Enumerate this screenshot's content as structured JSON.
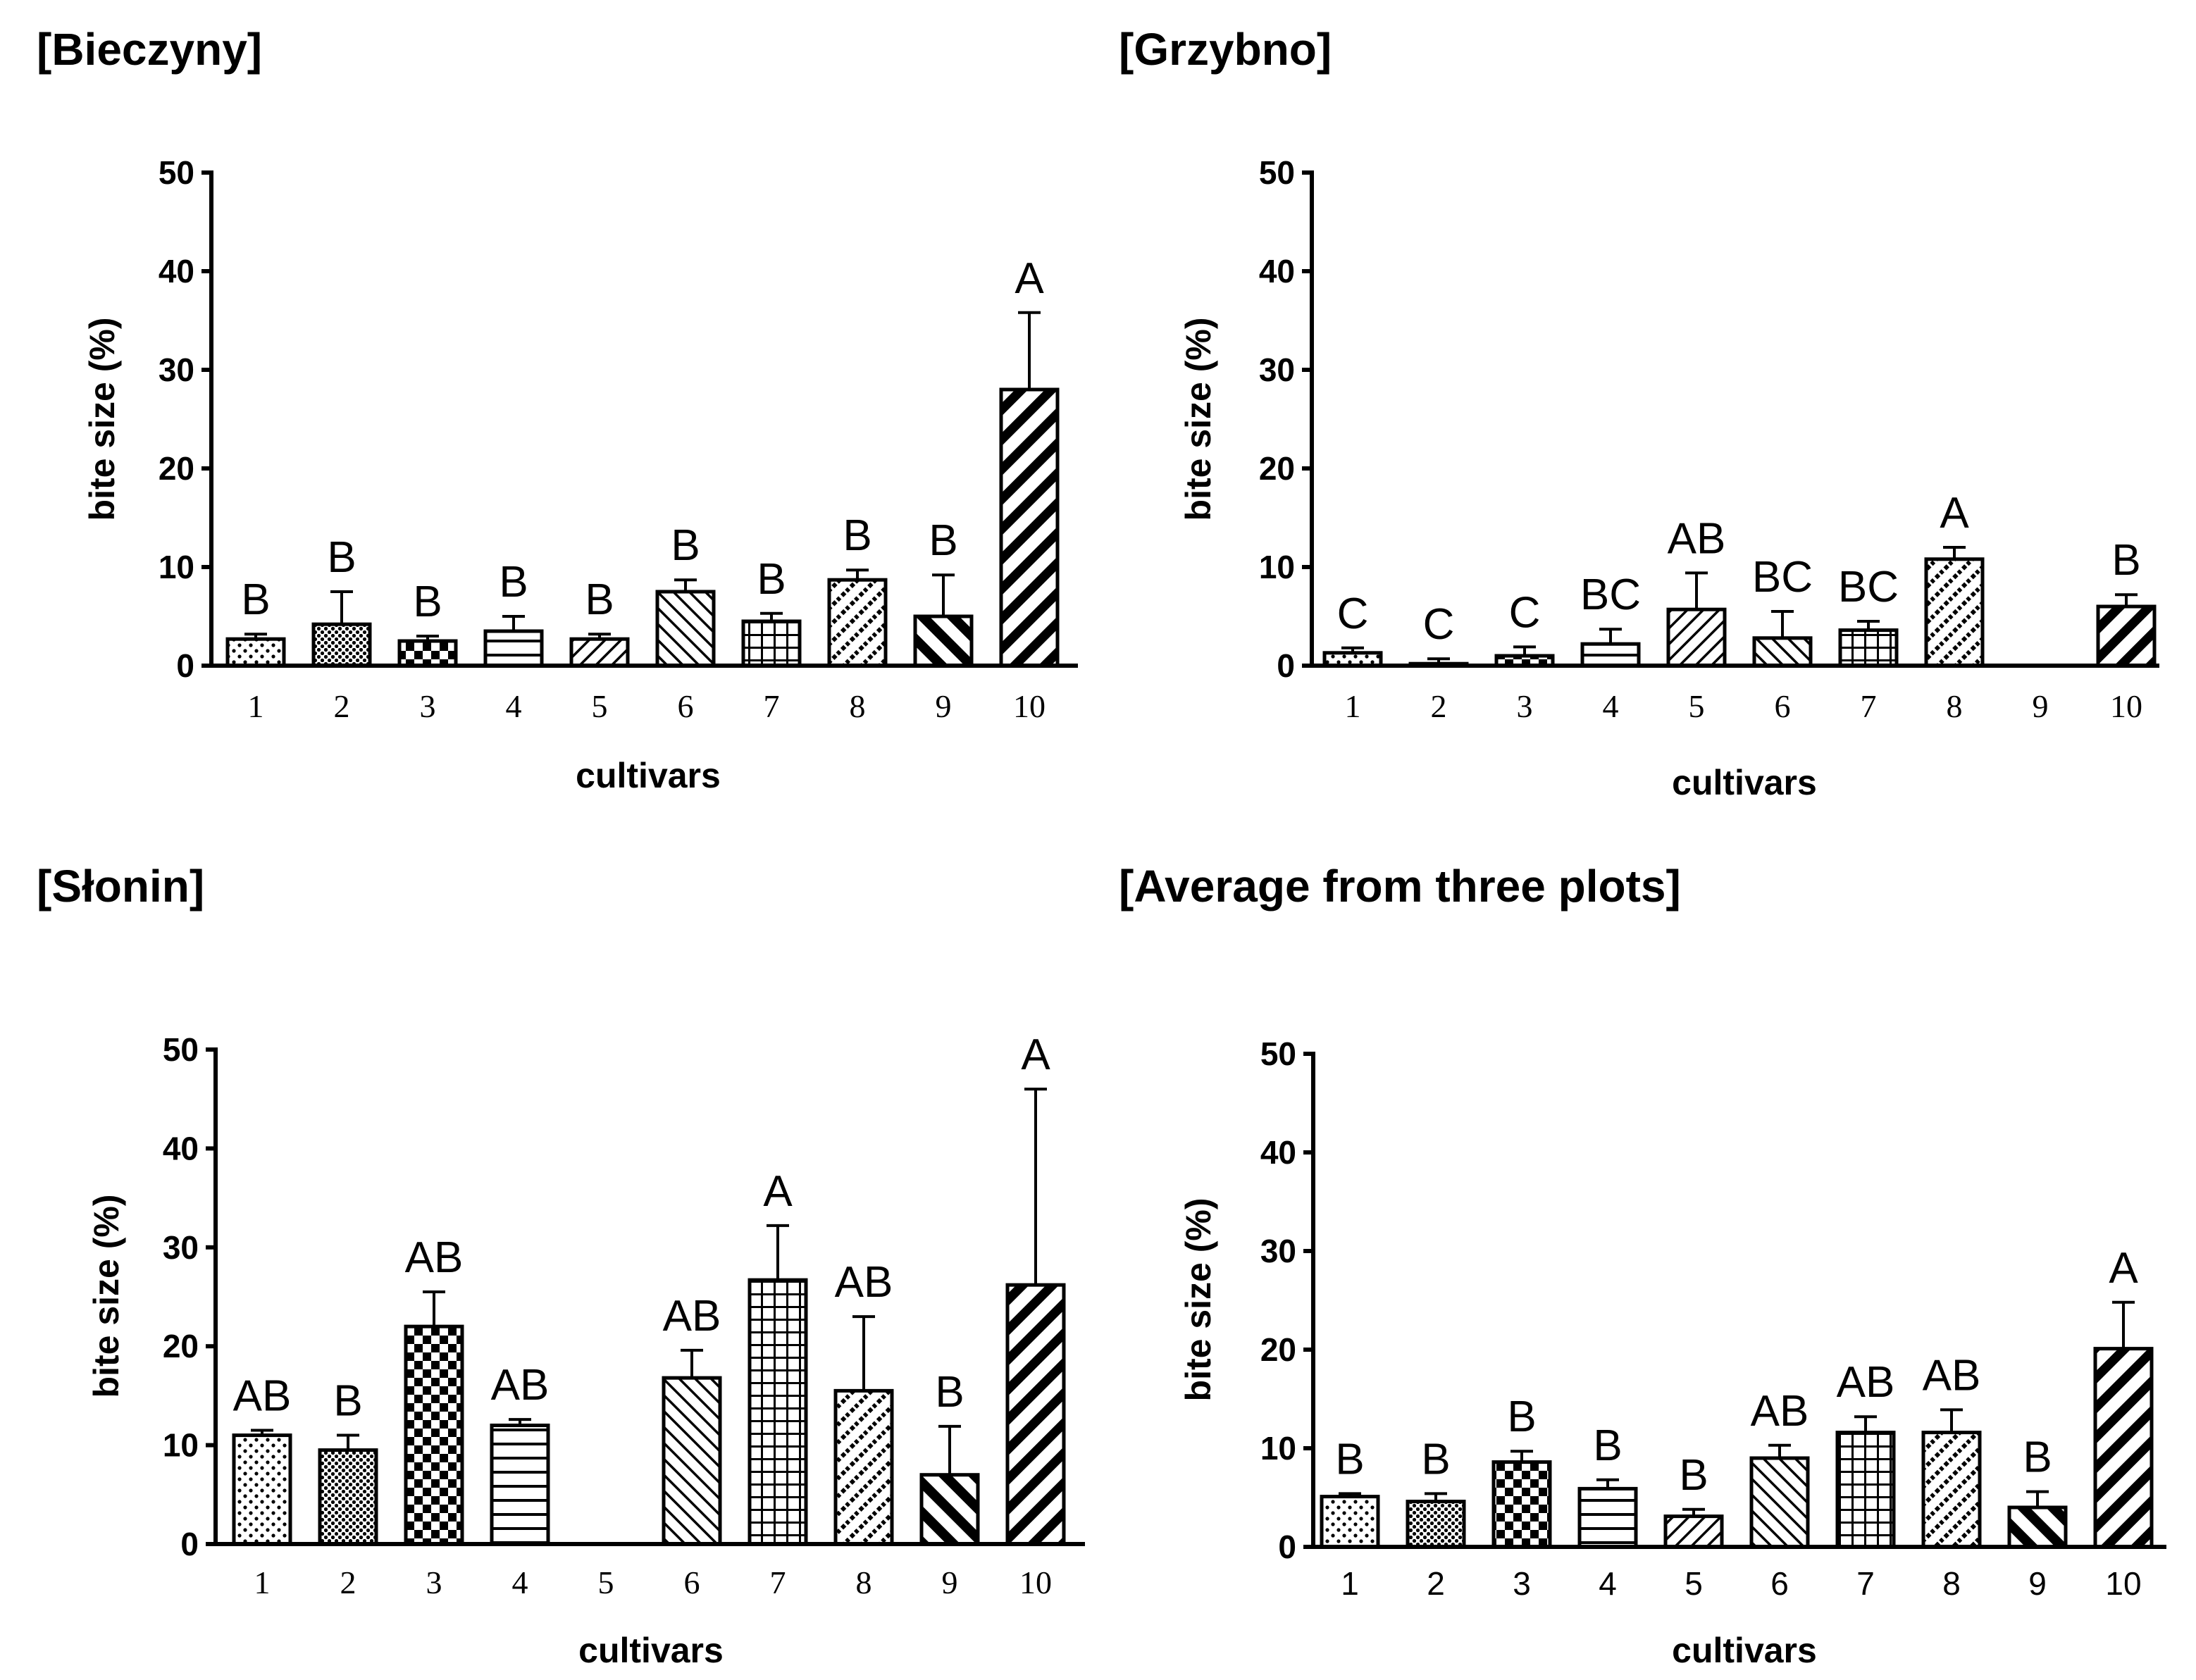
{
  "figure": {
    "y_label": "bite size (%)",
    "x_label": "cultivars"
  },
  "chart_data": [
    {
      "type": "bar",
      "title": "[Bieczyny]",
      "xlabel": "cultivars",
      "ylabel": "bite size (%)",
      "ylim": [
        0,
        50
      ],
      "yticks": [
        "0",
        "10",
        "20",
        "30",
        "40",
        "50"
      ],
      "categories": [
        "1",
        "2",
        "3",
        "4",
        "5",
        "6",
        "7",
        "8",
        "9",
        "10"
      ],
      "values": [
        2.7,
        4.2,
        2.5,
        3.5,
        2.7,
        7.5,
        4.5,
        8.7,
        5.0,
        28.0
      ],
      "errors": [
        0.5,
        3.3,
        0.5,
        1.5,
        0.5,
        1.2,
        0.8,
        1.0,
        4.2,
        7.8
      ],
      "letters": [
        "B",
        "B",
        "B",
        "B",
        "B",
        "B",
        "B",
        "B",
        "B",
        "A"
      ]
    },
    {
      "type": "bar",
      "title": "[Grzybno]",
      "xlabel": "cultivars",
      "ylabel": "bite size (%)",
      "ylim": [
        0,
        50
      ],
      "yticks": [
        "0",
        "10",
        "20",
        "30",
        "40",
        "50"
      ],
      "categories": [
        "1",
        "2",
        "3",
        "4",
        "5",
        "6",
        "7",
        "8",
        "9",
        "10"
      ],
      "values": [
        1.3,
        0.2,
        1.0,
        2.2,
        5.7,
        2.8,
        3.6,
        10.8,
        0,
        6.0
      ],
      "errors": [
        0.5,
        0.5,
        0.9,
        1.5,
        3.7,
        2.7,
        0.9,
        1.2,
        0,
        1.2
      ],
      "letters": [
        "C",
        "C",
        "C",
        "BC",
        "AB",
        "BC",
        "BC",
        "A",
        "",
        "B"
      ]
    },
    {
      "type": "bar",
      "title": "[Słonin]",
      "xlabel": "cultivars",
      "ylabel": "bite size (%)",
      "ylim": [
        0,
        50
      ],
      "yticks": [
        "0",
        "10",
        "20",
        "30",
        "40",
        "50"
      ],
      "categories": [
        "1",
        "2",
        "3",
        "4",
        "5",
        "6",
        "7",
        "8",
        "9",
        "10"
      ],
      "values": [
        11.0,
        9.5,
        22.0,
        12.0,
        0,
        16.8,
        26.7,
        15.5,
        7.0,
        26.2
      ],
      "errors": [
        0.5,
        1.5,
        3.5,
        0.6,
        0,
        2.8,
        5.5,
        7.5,
        4.9,
        19.8
      ],
      "letters": [
        "AB",
        "B",
        "AB",
        "AB",
        "",
        "AB",
        "A",
        "AB",
        "B",
        "A"
      ]
    },
    {
      "type": "bar",
      "title": "[Average from three plots]",
      "xlabel": "cultivars",
      "ylabel": "bite size (%)",
      "ylim": [
        0,
        50
      ],
      "yticks": [
        "0",
        "10",
        "20",
        "30",
        "40",
        "50"
      ],
      "categories": [
        "1",
        "2",
        "3",
        "4",
        "5",
        "6",
        "7",
        "8",
        "9",
        "10"
      ],
      "values": [
        5.1,
        4.6,
        8.6,
        5.9,
        3.1,
        9.0,
        11.6,
        11.6,
        4.0,
        20.1
      ],
      "errors": [
        0.3,
        0.8,
        1.1,
        0.9,
        0.7,
        1.3,
        1.6,
        2.3,
        1.6,
        4.7
      ],
      "letters": [
        "B",
        "B",
        "B",
        "B",
        "B",
        "AB",
        "AB",
        "AB",
        "B",
        "A"
      ]
    }
  ],
  "bar_patterns": [
    "dots",
    "dense-dots",
    "checker",
    "hlines",
    "diag-fine",
    "diag-back",
    "grid",
    "diag-dashed",
    "diag-heavy",
    "diag-bold"
  ]
}
